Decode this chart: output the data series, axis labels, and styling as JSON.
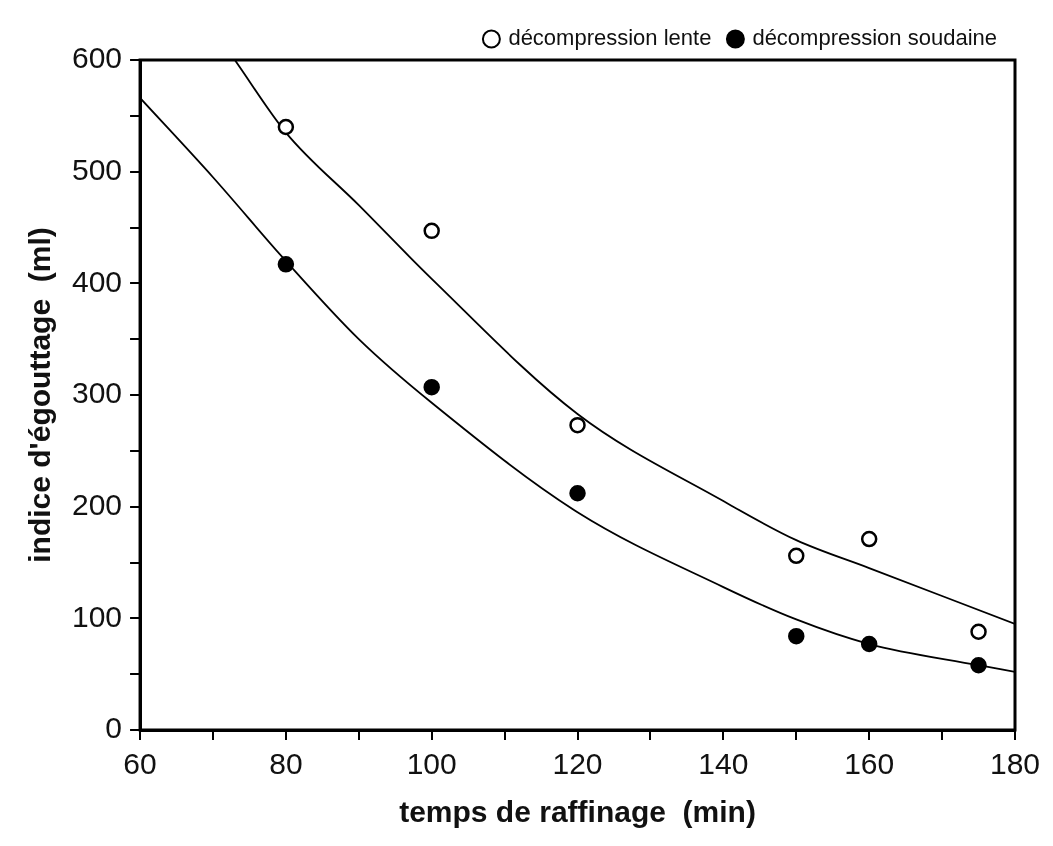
{
  "chart_data": {
    "type": "scatter",
    "xlabel": "temps de raffinage  (min)",
    "ylabel": "indice d'égouttage  (ml)",
    "x": [
      80,
      100,
      120,
      150,
      160,
      175
    ],
    "series": [
      {
        "name": "décompression lente",
        "color": "#ffffff",
        "values": [
          540,
          447,
          273,
          156,
          171,
          88
        ]
      },
      {
        "name": "décompression soudaine",
        "color": "#000000",
        "values": [
          417,
          307,
          212,
          84,
          77,
          58
        ]
      },
      {
        "type": "line",
        "marker": "none",
        "color": "#000000",
        "x": [
          73,
          80,
          90,
          100,
          120,
          140,
          150,
          160,
          180
        ],
        "values": [
          600,
          535,
          470,
          404,
          283,
          205,
          170,
          145,
          95
        ]
      },
      {
        "type": "line",
        "marker": "none",
        "color": "#000000",
        "x": [
          60,
          70,
          80,
          90,
          100,
          120,
          140,
          150,
          160,
          175,
          180
        ],
        "values": [
          566,
          495,
          420,
          350,
          293,
          195,
          128,
          99,
          77,
          58,
          52
        ]
      }
    ],
    "xlim": [
      60,
      180
    ],
    "xticks": [
      60,
      {
        "value": 70,
        "label": null
      },
      80,
      {
        "value": 90,
        "label": null
      },
      100,
      {
        "value": 110,
        "label": null
      },
      120,
      {
        "value": 130,
        "label": null
      },
      140,
      {
        "value": 150,
        "label": null
      },
      160,
      {
        "value": 170,
        "label": null
      },
      180
    ],
    "ylim": [
      0,
      600
    ],
    "yticks": [
      0,
      {
        "value": 50,
        "label": null
      },
      100,
      {
        "value": 150,
        "label": null
      },
      200,
      {
        "value": 250,
        "label": null
      },
      300,
      {
        "value": 350,
        "label": null
      },
      400,
      {
        "value": 450,
        "label": null
      },
      500,
      {
        "value": 550,
        "label": null
      },
      600
    ],
    "marker": "circle",
    "grid": false,
    "legend": "top right"
  }
}
